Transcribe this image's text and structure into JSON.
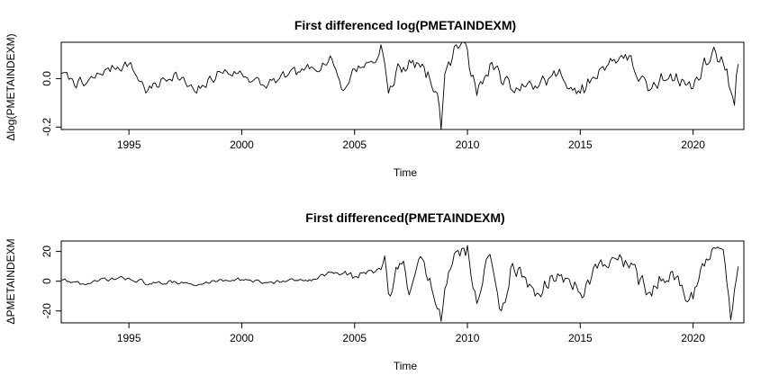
{
  "chart_data": [
    {
      "type": "line",
      "title": "First differenced log(PMETAINDEXM)",
      "xlabel": "Time",
      "ylabel": "Δlog(PMETAINDEXM)",
      "xlim": [
        1992.0,
        2022.25
      ],
      "ylim": [
        -0.21,
        0.15
      ],
      "x_ticks": [
        1995,
        2000,
        2005,
        2010,
        2015,
        2020
      ],
      "y_ticks": [
        0.0,
        -0.2
      ],
      "y_tick_labels": [
        "0.0",
        "-0.2"
      ],
      "series_start": 1992.0,
      "series_end": 2022.0,
      "anchors": [
        [
          1992.0,
          0.02
        ],
        [
          1993.0,
          -0.03
        ],
        [
          1994.0,
          0.04
        ],
        [
          1995.0,
          0.06
        ],
        [
          1995.8,
          -0.05
        ],
        [
          1997.0,
          0.02
        ],
        [
          1998.0,
          -0.06
        ],
        [
          1999.0,
          0.03
        ],
        [
          2000.0,
          0.02
        ],
        [
          2001.0,
          -0.03
        ],
        [
          2002.0,
          0.01
        ],
        [
          2003.0,
          0.04
        ],
        [
          2004.0,
          0.08
        ],
        [
          2004.5,
          -0.05
        ],
        [
          2005.0,
          0.04
        ],
        [
          2006.0,
          0.08
        ],
        [
          2006.2,
          0.14
        ],
        [
          2006.5,
          -0.06
        ],
        [
          2007.0,
          0.05
        ],
        [
          2008.0,
          0.06
        ],
        [
          2008.7,
          -0.06
        ],
        [
          2008.85,
          -0.21
        ],
        [
          2009.0,
          0.02
        ],
        [
          2009.5,
          0.14
        ],
        [
          2010.0,
          0.12
        ],
        [
          2010.4,
          -0.07
        ],
        [
          2011.0,
          0.06
        ],
        [
          2012.0,
          -0.05
        ],
        [
          2013.0,
          -0.03
        ],
        [
          2014.0,
          0.02
        ],
        [
          2015.0,
          -0.06
        ],
        [
          2016.0,
          0.05
        ],
        [
          2017.0,
          0.1
        ],
        [
          2018.0,
          -0.05
        ],
        [
          2019.0,
          0.02
        ],
        [
          2020.0,
          -0.04
        ],
        [
          2020.4,
          0.05
        ],
        [
          2021.0,
          0.11
        ],
        [
          2021.5,
          0.04
        ],
        [
          2021.8,
          -0.11
        ],
        [
          2022.0,
          0.06
        ]
      ]
    },
    {
      "type": "line",
      "title": "First differenced(PMETAINDEXM)",
      "xlabel": "Time",
      "ylabel": "ΔPMETAINDEXM",
      "xlim": [
        1992.0,
        2022.25
      ],
      "ylim": [
        -28,
        27
      ],
      "x_ticks": [
        1995,
        2000,
        2005,
        2010,
        2015,
        2020
      ],
      "y_ticks": [
        20,
        0,
        -20
      ],
      "y_tick_labels": [
        "20",
        "0",
        "-20"
      ],
      "series_start": 1992.0,
      "series_end": 2022.0,
      "anchors": [
        [
          1992.0,
          1
        ],
        [
          1993.0,
          -2
        ],
        [
          1994.0,
          1
        ],
        [
          1995.0,
          2
        ],
        [
          1996.0,
          -2
        ],
        [
          1997.0,
          0
        ],
        [
          1998.0,
          -3
        ],
        [
          1999.0,
          1
        ],
        [
          2000.0,
          1
        ],
        [
          2001.0,
          -1
        ],
        [
          2002.0,
          0
        ],
        [
          2003.0,
          1
        ],
        [
          2004.0,
          6
        ],
        [
          2005.0,
          3
        ],
        [
          2006.0,
          8
        ],
        [
          2006.3,
          17
        ],
        [
          2006.6,
          -10
        ],
        [
          2007.0,
          12
        ],
        [
          2007.5,
          -5
        ],
        [
          2008.0,
          15
        ],
        [
          2008.5,
          -10
        ],
        [
          2008.85,
          -27
        ],
        [
          2009.0,
          -5
        ],
        [
          2009.5,
          20
        ],
        [
          2010.0,
          24
        ],
        [
          2010.4,
          -15
        ],
        [
          2011.0,
          18
        ],
        [
          2011.5,
          -20
        ],
        [
          2012.0,
          12
        ],
        [
          2013.0,
          -10
        ],
        [
          2014.0,
          5
        ],
        [
          2015.0,
          -8
        ],
        [
          2016.0,
          10
        ],
        [
          2017.0,
          14
        ],
        [
          2018.0,
          -8
        ],
        [
          2019.0,
          6
        ],
        [
          2020.0,
          -12
        ],
        [
          2020.5,
          10
        ],
        [
          2021.0,
          22
        ],
        [
          2021.4,
          12
        ],
        [
          2021.7,
          -26
        ],
        [
          2022.0,
          10
        ]
      ]
    }
  ]
}
